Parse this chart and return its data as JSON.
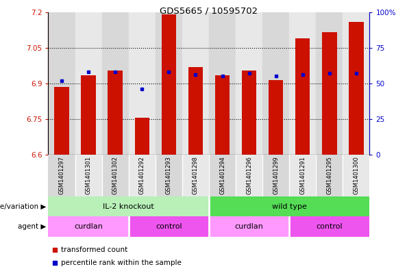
{
  "title": "GDS5665 / 10595702",
  "samples": [
    "GSM1401297",
    "GSM1401301",
    "GSM1401302",
    "GSM1401292",
    "GSM1401293",
    "GSM1401298",
    "GSM1401294",
    "GSM1401296",
    "GSM1401299",
    "GSM1401291",
    "GSM1401295",
    "GSM1401300"
  ],
  "bar_values": [
    6.885,
    6.935,
    6.955,
    6.755,
    7.19,
    6.97,
    6.935,
    6.955,
    6.915,
    7.09,
    7.115,
    7.16
  ],
  "bar_base": 6.6,
  "percentile_values": [
    52,
    58,
    58,
    46,
    58,
    56,
    55,
    57,
    55,
    56,
    57,
    57
  ],
  "ylim_left": [
    6.6,
    7.2
  ],
  "ylim_right": [
    0,
    100
  ],
  "yticks_left": [
    6.6,
    6.75,
    6.9,
    7.05,
    7.2
  ],
  "yticks_right": [
    0,
    25,
    50,
    75,
    100
  ],
  "ytick_labels_left": [
    "6.6",
    "6.75",
    "6.9",
    "7.05",
    "7.2"
  ],
  "ytick_labels_right": [
    "0",
    "25",
    "50",
    "75",
    "100%"
  ],
  "hline_values": [
    6.75,
    6.9,
    7.05
  ],
  "bar_color": "#cc1100",
  "percentile_color": "#0000cc",
  "genotype_groups": [
    {
      "label": "IL-2 knockout",
      "span": [
        0,
        6
      ],
      "color": "#b8f0b8"
    },
    {
      "label": "wild type",
      "span": [
        6,
        12
      ],
      "color": "#55dd55"
    }
  ],
  "agent_groups": [
    {
      "label": "curdlan",
      "span": [
        0,
        3
      ],
      "color": "#ff99ff"
    },
    {
      "label": "control",
      "span": [
        3,
        6
      ],
      "color": "#ee55ee"
    },
    {
      "label": "curdlan",
      "span": [
        6,
        9
      ],
      "color": "#ff99ff"
    },
    {
      "label": "control",
      "span": [
        9,
        12
      ],
      "color": "#ee55ee"
    }
  ],
  "legend_items": [
    {
      "label": "transformed count",
      "color": "#cc1100"
    },
    {
      "label": "percentile rank within the sample",
      "color": "#0000cc"
    }
  ],
  "sample_bg_color": "#d8d8d8",
  "sample_bg_alt": "#e8e8e8",
  "plot_bg": "#ffffff",
  "genotype_label": "genotype/variation",
  "agent_label": "agent"
}
